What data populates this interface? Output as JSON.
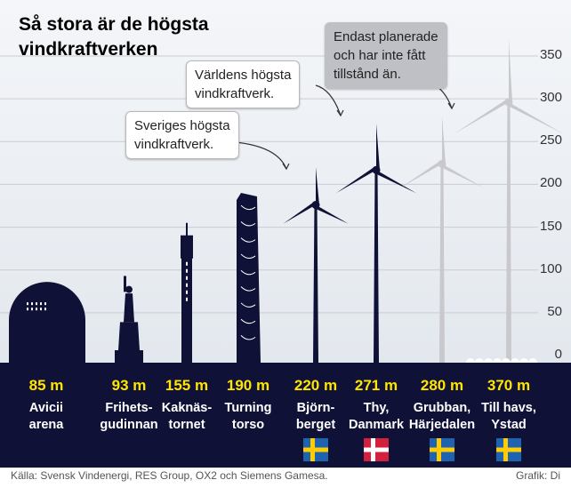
{
  "title": "Så stora är de högsta\nvindkraftverken",
  "callouts": {
    "sweden": "Sveriges högsta\nvindkraftverk.",
    "world": "Världens högsta\nvindkraftverk.",
    "planned": "Endast planerade\noch har inte fått\ntillstånd än."
  },
  "chart_data": {
    "type": "bar",
    "unit": "m",
    "ylim": [
      0,
      370
    ],
    "yticks": [
      0,
      50,
      100,
      150,
      200,
      250,
      300,
      350
    ],
    "grid": true,
    "categories": [
      "Avicii arena",
      "Frihetsgudinnan",
      "Kaknästornet",
      "Turning torso",
      "Björnberget",
      "Thy, Danmark",
      "Grubban, Härjedalen",
      "Till havs, Ystad"
    ],
    "values": [
      85,
      93,
      155,
      190,
      220,
      271,
      280,
      370
    ]
  },
  "columns": [
    {
      "height": "85 m",
      "name": "Avicii\narena",
      "flag": ""
    },
    {
      "height": "93 m",
      "name": "Frihets-\ngudinnan",
      "flag": ""
    },
    {
      "height": "155 m",
      "name": "Kaknäs-\ntornet",
      "flag": ""
    },
    {
      "height": "190 m",
      "name": "Turning\ntorso",
      "flag": ""
    },
    {
      "height": "220 m",
      "name": "Björn-\nberget",
      "flag": "sweden"
    },
    {
      "height": "271 m",
      "name": "Thy,\nDanmark",
      "flag": "denmark"
    },
    {
      "height": "280 m",
      "name": "Grubban,\nHärjedalen",
      "flag": "sweden"
    },
    {
      "height": "370 m",
      "name": "Till havs,\nYstad",
      "flag": "sweden"
    }
  ],
  "colors": {
    "navy": "#0f1136",
    "planned": "#c8c8cd",
    "highlight": "#ffe500",
    "sky": "#e9edf2",
    "grid": "#c9ccd2",
    "sweden_blue": "#1e63b0",
    "sweden_yellow": "#fecc00",
    "denmark_red": "#d3213d"
  },
  "footer": {
    "source": "Källa: Svensk Vindenergi, RES Group, OX2 och Siemens Gamesa.",
    "credit": "Grafik: Di"
  }
}
